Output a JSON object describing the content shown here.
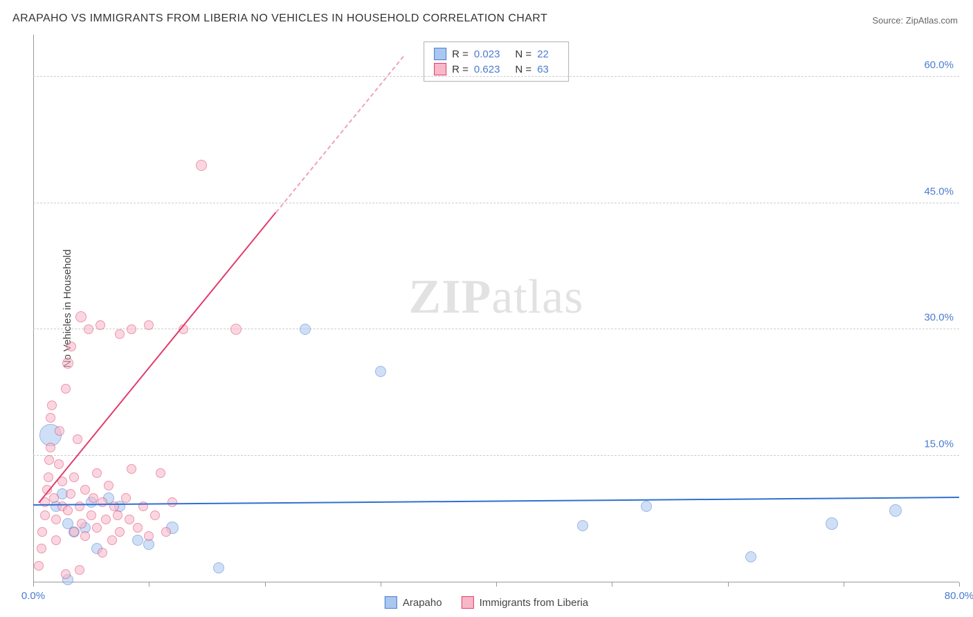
{
  "title": "ARAPAHO VS IMMIGRANTS FROM LIBERIA NO VEHICLES IN HOUSEHOLD CORRELATION CHART",
  "source": "Source: ZipAtlas.com",
  "ylabel": "No Vehicles in Household",
  "watermark": {
    "bold": "ZIP",
    "light": "atlas"
  },
  "chart": {
    "type": "scatter",
    "xlim": [
      0,
      80
    ],
    "ylim": [
      0,
      65
    ],
    "x_ticks": [
      0,
      10,
      20,
      30,
      40,
      50,
      60,
      70,
      80
    ],
    "x_tick_labels": {
      "0": "0.0%",
      "80": "80.0%"
    },
    "y_gridlines": [
      15,
      30,
      45,
      60
    ],
    "y_tick_labels": {
      "15": "15.0%",
      "30": "30.0%",
      "45": "45.0%",
      "60": "60.0%"
    },
    "grid_color": "#cccccc",
    "background_color": "#ffffff",
    "series": [
      {
        "name": "Arapaho",
        "fill": "#a9c7f0",
        "stroke": "#4a7bd0",
        "fill_opacity": 0.55,
        "points": [
          {
            "x": 1.5,
            "y": 17.5,
            "r": 16
          },
          {
            "x": 2.0,
            "y": 9.0,
            "r": 8
          },
          {
            "x": 2.5,
            "y": 10.5,
            "r": 8
          },
          {
            "x": 3.0,
            "y": 7.0,
            "r": 8
          },
          {
            "x": 3.5,
            "y": 6.0,
            "r": 8
          },
          {
            "x": 3.0,
            "y": 0.3,
            "r": 8
          },
          {
            "x": 4.5,
            "y": 6.5,
            "r": 8
          },
          {
            "x": 5.0,
            "y": 9.5,
            "r": 8
          },
          {
            "x": 5.5,
            "y": 4.0,
            "r": 8
          },
          {
            "x": 6.5,
            "y": 10.0,
            "r": 8
          },
          {
            "x": 7.5,
            "y": 9.0,
            "r": 8
          },
          {
            "x": 9.0,
            "y": 5.0,
            "r": 8
          },
          {
            "x": 10.0,
            "y": 4.5,
            "r": 8
          },
          {
            "x": 12.0,
            "y": 6.5,
            "r": 9
          },
          {
            "x": 16.0,
            "y": 1.7,
            "r": 8
          },
          {
            "x": 23.5,
            "y": 30.0,
            "r": 8
          },
          {
            "x": 30.0,
            "y": 25.0,
            "r": 8
          },
          {
            "x": 47.5,
            "y": 6.7,
            "r": 8
          },
          {
            "x": 53.0,
            "y": 9.0,
            "r": 8
          },
          {
            "x": 62.0,
            "y": 3.0,
            "r": 8
          },
          {
            "x": 69.0,
            "y": 7.0,
            "r": 9
          },
          {
            "x": 74.5,
            "y": 8.5,
            "r": 9
          }
        ],
        "trend": {
          "x1": 0,
          "y1": 9.3,
          "x2": 80,
          "y2": 10.2,
          "color": "#2f6fd0"
        },
        "stats": {
          "R": "0.023",
          "N": "22"
        }
      },
      {
        "name": "Immigrants from Liberia",
        "fill": "#f7b8c8",
        "stroke": "#e23b6b",
        "fill_opacity": 0.55,
        "points": [
          {
            "x": 0.5,
            "y": 2.0,
            "r": 7
          },
          {
            "x": 0.7,
            "y": 4.0,
            "r": 7
          },
          {
            "x": 0.8,
            "y": 6.0,
            "r": 7
          },
          {
            "x": 1.0,
            "y": 8.0,
            "r": 7
          },
          {
            "x": 1.0,
            "y": 9.5,
            "r": 7
          },
          {
            "x": 1.2,
            "y": 11.0,
            "r": 7
          },
          {
            "x": 1.3,
            "y": 12.5,
            "r": 7
          },
          {
            "x": 1.4,
            "y": 14.5,
            "r": 7
          },
          {
            "x": 1.5,
            "y": 16.0,
            "r": 7
          },
          {
            "x": 1.5,
            "y": 19.5,
            "r": 7
          },
          {
            "x": 1.6,
            "y": 21.0,
            "r": 7
          },
          {
            "x": 1.8,
            "y": 10.0,
            "r": 7
          },
          {
            "x": 2.0,
            "y": 7.5,
            "r": 7
          },
          {
            "x": 2.0,
            "y": 5.0,
            "r": 7
          },
          {
            "x": 2.2,
            "y": 14.0,
            "r": 7
          },
          {
            "x": 2.3,
            "y": 18.0,
            "r": 7
          },
          {
            "x": 2.5,
            "y": 9.0,
            "r": 7
          },
          {
            "x": 2.5,
            "y": 12.0,
            "r": 7
          },
          {
            "x": 2.8,
            "y": 23.0,
            "r": 7
          },
          {
            "x": 3.0,
            "y": 26.0,
            "r": 8
          },
          {
            "x": 3.0,
            "y": 8.5,
            "r": 7
          },
          {
            "x": 3.2,
            "y": 10.5,
            "r": 7
          },
          {
            "x": 3.3,
            "y": 28.0,
            "r": 7
          },
          {
            "x": 3.5,
            "y": 6.0,
            "r": 7
          },
          {
            "x": 3.5,
            "y": 12.5,
            "r": 7
          },
          {
            "x": 3.8,
            "y": 17.0,
            "r": 7
          },
          {
            "x": 4.0,
            "y": 9.0,
            "r": 7
          },
          {
            "x": 4.1,
            "y": 31.5,
            "r": 8
          },
          {
            "x": 4.2,
            "y": 7.0,
            "r": 7
          },
          {
            "x": 4.5,
            "y": 11.0,
            "r": 7
          },
          {
            "x": 4.5,
            "y": 5.5,
            "r": 7
          },
          {
            "x": 4.8,
            "y": 30.0,
            "r": 7
          },
          {
            "x": 5.0,
            "y": 8.0,
            "r": 7
          },
          {
            "x": 5.2,
            "y": 10.0,
            "r": 7
          },
          {
            "x": 5.5,
            "y": 6.5,
            "r": 7
          },
          {
            "x": 5.5,
            "y": 13.0,
            "r": 7
          },
          {
            "x": 5.8,
            "y": 30.5,
            "r": 7
          },
          {
            "x": 6.0,
            "y": 3.5,
            "r": 7
          },
          {
            "x": 6.0,
            "y": 9.5,
            "r": 7
          },
          {
            "x": 6.3,
            "y": 7.5,
            "r": 7
          },
          {
            "x": 6.5,
            "y": 11.5,
            "r": 7
          },
          {
            "x": 6.8,
            "y": 5.0,
            "r": 7
          },
          {
            "x": 7.0,
            "y": 9.0,
            "r": 7
          },
          {
            "x": 7.3,
            "y": 8.0,
            "r": 7
          },
          {
            "x": 7.5,
            "y": 6.0,
            "r": 7
          },
          {
            "x": 7.5,
            "y": 29.5,
            "r": 7
          },
          {
            "x": 8.0,
            "y": 10.0,
            "r": 7
          },
          {
            "x": 8.3,
            "y": 7.5,
            "r": 7
          },
          {
            "x": 8.5,
            "y": 13.5,
            "r": 7
          },
          {
            "x": 8.5,
            "y": 30.0,
            "r": 7
          },
          {
            "x": 9.0,
            "y": 6.5,
            "r": 7
          },
          {
            "x": 9.5,
            "y": 9.0,
            "r": 7
          },
          {
            "x": 10.0,
            "y": 5.5,
            "r": 7
          },
          {
            "x": 10.0,
            "y": 30.5,
            "r": 7
          },
          {
            "x": 10.5,
            "y": 8.0,
            "r": 7
          },
          {
            "x": 11.0,
            "y": 13.0,
            "r": 7
          },
          {
            "x": 11.5,
            "y": 6.0,
            "r": 7
          },
          {
            "x": 12.0,
            "y": 9.5,
            "r": 7
          },
          {
            "x": 13.0,
            "y": 30.0,
            "r": 7
          },
          {
            "x": 14.5,
            "y": 49.5,
            "r": 8
          },
          {
            "x": 17.5,
            "y": 30.0,
            "r": 8
          },
          {
            "x": 2.8,
            "y": 1.0,
            "r": 7
          },
          {
            "x": 4.0,
            "y": 1.5,
            "r": 7
          }
        ],
        "trend": {
          "x1": 0.5,
          "y1": 9.5,
          "x2": 21,
          "y2": 44.0,
          "color": "#e23b6b"
        },
        "trend_dash": {
          "x1": 21,
          "y1": 44.0,
          "x2": 32,
          "y2": 62.5,
          "color": "#f0a2b8"
        },
        "stats": {
          "R": "0.623",
          "N": "63"
        }
      }
    ]
  },
  "legend": [
    {
      "label": "Arapaho",
      "fill": "#a9c7f0",
      "stroke": "#4a7bd0"
    },
    {
      "label": "Immigrants from Liberia",
      "fill": "#f7b8c8",
      "stroke": "#e23b6b"
    }
  ]
}
